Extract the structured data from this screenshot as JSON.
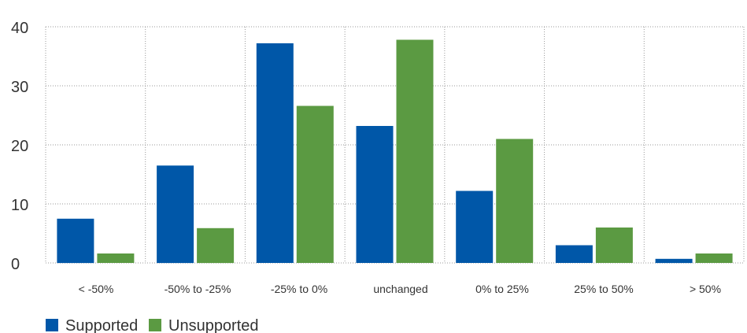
{
  "chart_data": {
    "type": "bar",
    "categories": [
      "< -50%",
      "-50% to -25%",
      "-25% to 0%",
      "unchanged",
      "0% to 25%",
      "25% to 50%",
      "> 50%"
    ],
    "series": [
      {
        "name": "Supported",
        "color": "#0057a8",
        "values": [
          7.5,
          16.5,
          37.2,
          23.2,
          12.2,
          3.0,
          0.7
        ]
      },
      {
        "name": "Unsupported",
        "color": "#5b9a42",
        "values": [
          1.6,
          5.9,
          26.6,
          37.8,
          21.0,
          6.0,
          1.6
        ]
      }
    ],
    "yticks": [
      "0",
      "10",
      "20",
      "30",
      "40"
    ],
    "ylim": [
      0,
      40
    ],
    "grid": true,
    "legend_position": "bottom-left"
  }
}
